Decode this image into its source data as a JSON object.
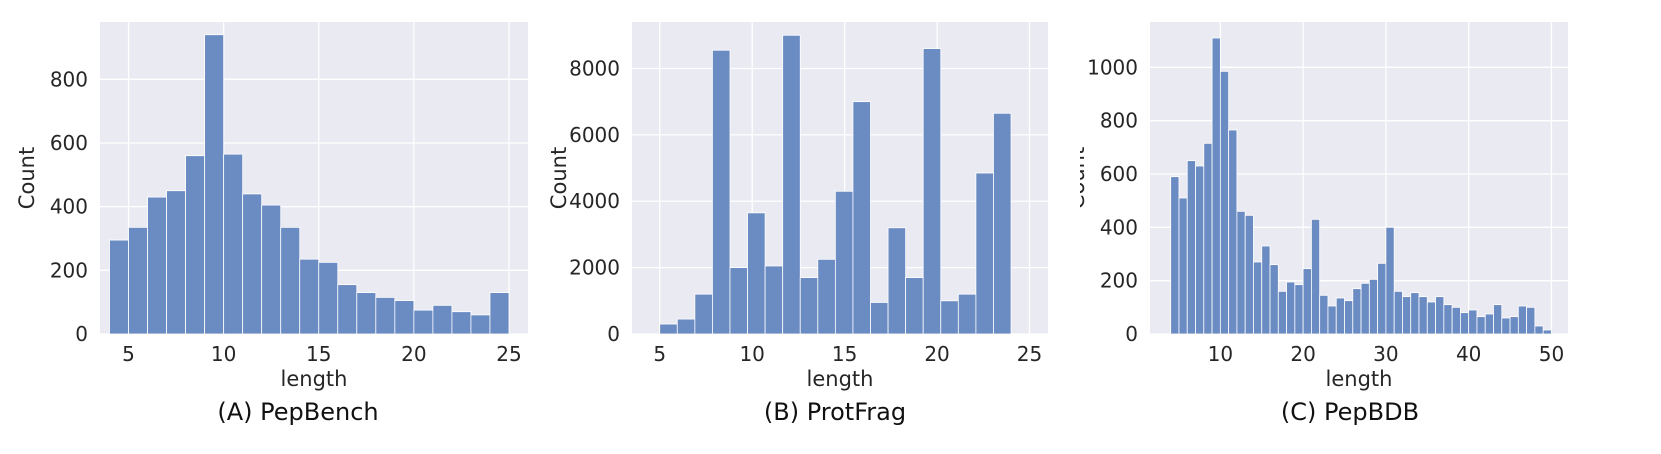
{
  "chart_data": [
    {
      "type": "bar",
      "caption": "(A) PepBench",
      "xlabel": "length",
      "ylabel": "Count",
      "xlim": [
        3.5,
        26.0
      ],
      "ylim": [
        0,
        980
      ],
      "xticks": [
        5,
        10,
        15,
        20,
        25
      ],
      "yticks": [
        0,
        200,
        400,
        600,
        800
      ],
      "bin_width": 1.0,
      "bin_start": 4.0,
      "values": [
        295,
        335,
        430,
        450,
        560,
        940,
        565,
        440,
        405,
        335,
        235,
        225,
        155,
        130,
        115,
        105,
        75,
        90,
        70,
        60,
        130
      ],
      "bar_color": "#6b8bc3",
      "background": "#eaeaf2",
      "grid": true
    },
    {
      "type": "bar",
      "caption": "(B) ProtFrag",
      "xlabel": "length",
      "ylabel": "Count",
      "xlim": [
        3.5,
        26.0
      ],
      "ylim": [
        0,
        9400
      ],
      "xticks": [
        5,
        10,
        15,
        20,
        25
      ],
      "yticks": [
        0,
        2000,
        4000,
        6000,
        8000
      ],
      "bin_width": 0.95,
      "bin_start": 5.0,
      "values": [
        300,
        450,
        1200,
        8550,
        2000,
        3650,
        2050,
        9000,
        1700,
        2250,
        4300,
        7000,
        950,
        3200,
        1700,
        8600,
        1000,
        1200,
        4850,
        6650
      ],
      "bar_color": "#6b8bc3",
      "background": "#eaeaf2",
      "grid": true
    },
    {
      "type": "bar",
      "caption": "(C) PepBDB",
      "xlabel": "length",
      "ylabel": "Count",
      "xlim": [
        1.5,
        52.0
      ],
      "ylim": [
        0,
        1170
      ],
      "xticks": [
        10,
        20,
        30,
        40,
        50
      ],
      "yticks": [
        0,
        200,
        400,
        600,
        800,
        1000
      ],
      "bin_width": 1.0,
      "bin_start": 4.0,
      "values": [
        590,
        510,
        650,
        630,
        715,
        1110,
        985,
        765,
        460,
        445,
        270,
        330,
        260,
        160,
        195,
        185,
        245,
        430,
        145,
        105,
        135,
        125,
        170,
        190,
        205,
        265,
        400,
        160,
        140,
        155,
        140,
        120,
        140,
        110,
        100,
        80,
        90,
        65,
        75,
        110,
        60,
        65,
        105,
        100,
        30,
        15
      ],
      "bar_color": "#6b8bc3",
      "background": "#eaeaf2",
      "grid": true
    }
  ]
}
